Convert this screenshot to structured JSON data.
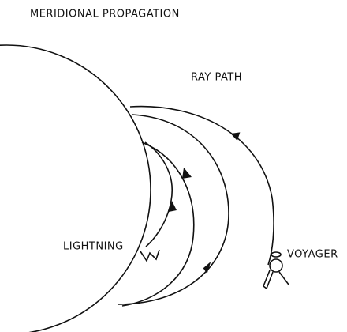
{
  "title": "MERIDIONAL PROPAGATION",
  "labels": {
    "ray_path": "RAY PATH",
    "voyager": "VOYAGER",
    "lightning": "LIGHTNING"
  }
}
